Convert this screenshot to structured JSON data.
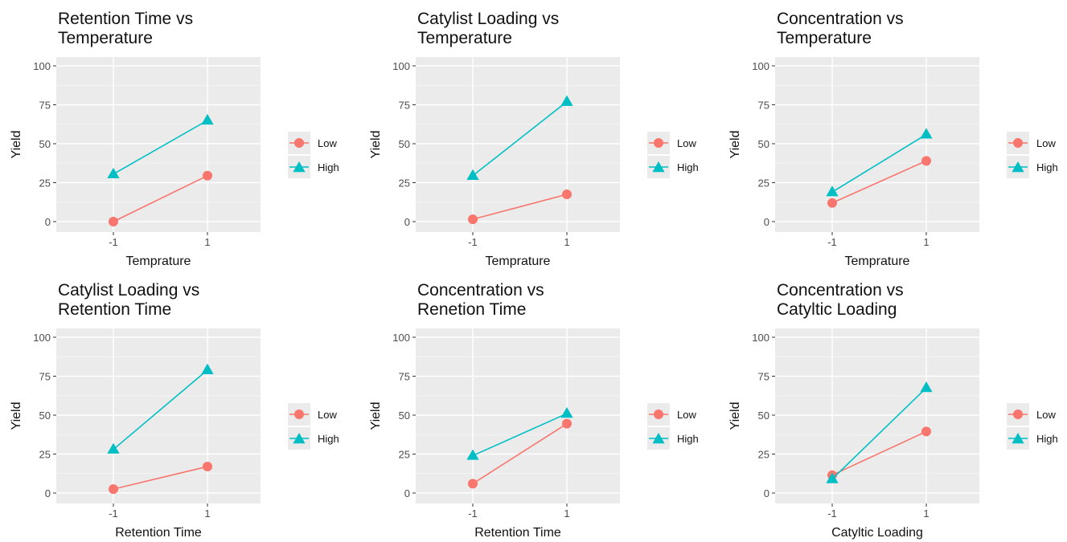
{
  "chart_data": [
    {
      "type": "line",
      "title": "Retention Time vs\nTemperature",
      "xlabel": "Temprature",
      "ylabel": "Yield",
      "categories": [
        "-1",
        "1"
      ],
      "ylim": [
        0,
        100
      ],
      "yticks": [
        0,
        25,
        50,
        75,
        100
      ],
      "grid": true,
      "legend": "right",
      "series": [
        {
          "name": "Low",
          "values": [
            0,
            29.5
          ],
          "color": "#F8766D",
          "marker": "circle"
        },
        {
          "name": "High",
          "values": [
            30.5,
            65
          ],
          "color": "#00BFC4",
          "marker": "triangle"
        }
      ]
    },
    {
      "type": "line",
      "title": "Catylist Loading vs\nTemperature",
      "xlabel": "Temprature",
      "ylabel": "Yield",
      "categories": [
        "-1",
        "1"
      ],
      "ylim": [
        0,
        100
      ],
      "yticks": [
        0,
        25,
        50,
        75,
        100
      ],
      "grid": true,
      "legend": "right",
      "series": [
        {
          "name": "Low",
          "values": [
            1.5,
            17.5
          ],
          "color": "#F8766D",
          "marker": "circle"
        },
        {
          "name": "High",
          "values": [
            29.5,
            77
          ],
          "color": "#00BFC4",
          "marker": "triangle"
        }
      ]
    },
    {
      "type": "line",
      "title": "Concentration vs\nTemperature",
      "xlabel": "Temprature",
      "ylabel": "Yield",
      "categories": [
        "-1",
        "1"
      ],
      "ylim": [
        0,
        100
      ],
      "yticks": [
        0,
        25,
        50,
        75,
        100
      ],
      "grid": true,
      "legend": "right",
      "series": [
        {
          "name": "Low",
          "values": [
            12,
            39
          ],
          "color": "#F8766D",
          "marker": "circle"
        },
        {
          "name": "High",
          "values": [
            19,
            56
          ],
          "color": "#00BFC4",
          "marker": "triangle"
        }
      ]
    },
    {
      "type": "line",
      "title": "Catylist Loading vs\nRetention Time",
      "xlabel": "Retention Time",
      "ylabel": "Yield",
      "categories": [
        "-1",
        "1"
      ],
      "ylim": [
        0,
        100
      ],
      "yticks": [
        0,
        25,
        50,
        75,
        100
      ],
      "grid": true,
      "legend": "right",
      "series": [
        {
          "name": "Low",
          "values": [
            2.5,
            17
          ],
          "color": "#F8766D",
          "marker": "circle"
        },
        {
          "name": "High",
          "values": [
            28,
            79
          ],
          "color": "#00BFC4",
          "marker": "triangle"
        }
      ]
    },
    {
      "type": "line",
      "title": "Concentration vs\nRenetion Time",
      "xlabel": "Retention Time",
      "ylabel": "Yield",
      "categories": [
        "-1",
        "1"
      ],
      "ylim": [
        0,
        100
      ],
      "yticks": [
        0,
        25,
        50,
        75,
        100
      ],
      "grid": true,
      "legend": "right",
      "series": [
        {
          "name": "Low",
          "values": [
            6,
            44.5
          ],
          "color": "#F8766D",
          "marker": "circle"
        },
        {
          "name": "High",
          "values": [
            24,
            51
          ],
          "color": "#00BFC4",
          "marker": "triangle"
        }
      ]
    },
    {
      "type": "line",
      "title": "Concentration vs\nCatyltic Loading",
      "xlabel": "Catyltic Loading",
      "ylabel": "Yield",
      "categories": [
        "-1",
        "1"
      ],
      "ylim": [
        0,
        100
      ],
      "yticks": [
        0,
        25,
        50,
        75,
        100
      ],
      "grid": true,
      "legend": "right",
      "series": [
        {
          "name": "Low",
          "values": [
            11.5,
            39.5
          ],
          "color": "#F8766D",
          "marker": "circle"
        },
        {
          "name": "High",
          "values": [
            9,
            67.5
          ],
          "color": "#00BFC4",
          "marker": "triangle"
        }
      ]
    }
  ]
}
